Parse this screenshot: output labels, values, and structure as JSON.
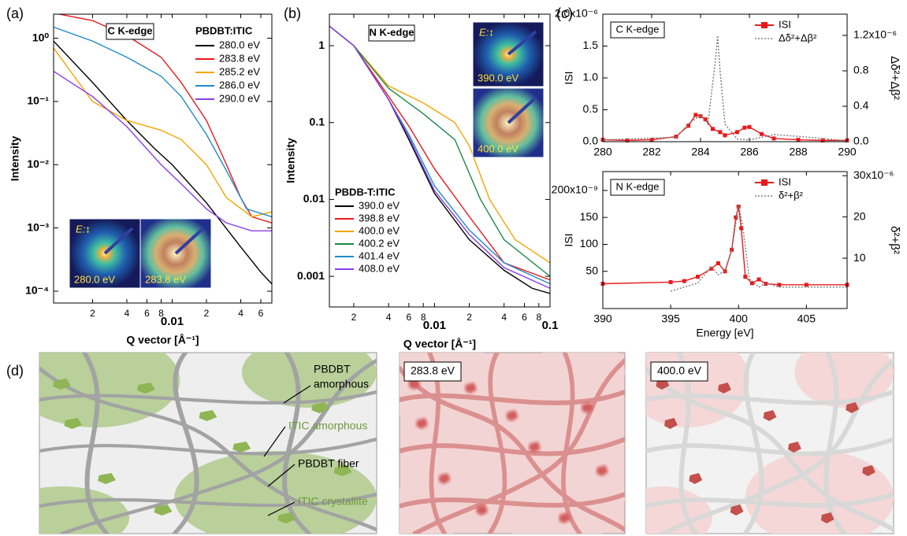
{
  "panel_labels": [
    "(a)",
    "(b)",
    "(c)",
    "(d)"
  ],
  "chart_data": [
    {
      "type": "line",
      "annotation": "C K-edge",
      "legend_title": "PBDBT:ITIC",
      "xlabel": "Q vector [Å⁻¹]",
      "ylabel": "Intensity",
      "xlog": true,
      "ylog": true,
      "xlim": [
        0.00091,
        0.075
      ],
      "ylim": [
        6.5e-05,
        2.4
      ],
      "xticks": [
        {
          "value": 0.002,
          "label": "2"
        },
        {
          "value": 0.004,
          "label": "4"
        },
        {
          "value": 0.006,
          "label": "6"
        },
        {
          "value": 0.008,
          "label": "8"
        },
        0.01,
        {
          "value": 0.02,
          "label": "2"
        },
        {
          "value": 0.04,
          "label": "4"
        },
        {
          "value": 0.06,
          "label": "6"
        }
      ],
      "yticks": [
        {
          "value": 0.0001,
          "label": "10⁻⁴"
        },
        {
          "value": 0.001,
          "label": "10⁻³"
        },
        {
          "value": 0.01,
          "label": "10⁻²"
        },
        {
          "value": 0.1,
          "label": "10⁻¹"
        },
        {
          "value": 1,
          "label": "10⁰"
        }
      ],
      "series": [
        {
          "name": "280.0 eV",
          "color": "#000000",
          "x": [
            0.00091,
            0.002,
            0.004,
            0.007,
            0.01,
            0.02,
            0.04,
            0.06,
            0.075
          ],
          "values": [
            0.9,
            0.2,
            0.05,
            0.018,
            0.01,
            0.0025,
            0.0005,
            0.0002,
            0.00013
          ]
        },
        {
          "name": "283.8 eV",
          "color": "#e8191c",
          "x": [
            0.00091,
            0.002,
            0.004,
            0.008,
            0.012,
            0.02,
            0.03,
            0.04,
            0.05,
            0.075
          ],
          "values": [
            2.5,
            1.9,
            1.1,
            0.5,
            0.2,
            0.05,
            0.01,
            0.003,
            0.0015,
            0.0012
          ]
        },
        {
          "name": "285.2 eV",
          "color": "#f5a400",
          "x": [
            0.00091,
            0.002,
            0.004,
            0.008,
            0.012,
            0.02,
            0.03,
            0.05,
            0.075
          ],
          "values": [
            0.7,
            0.1,
            0.05,
            0.035,
            0.025,
            0.01,
            0.003,
            0.0015,
            0.0018
          ]
        },
        {
          "name": "286.0 eV",
          "color": "#1f8ac9",
          "x": [
            0.00091,
            0.002,
            0.004,
            0.008,
            0.012,
            0.02,
            0.03,
            0.045,
            0.075
          ],
          "values": [
            1.5,
            0.9,
            0.5,
            0.25,
            0.12,
            0.03,
            0.008,
            0.002,
            0.0015
          ]
        },
        {
          "name": "290.0 eV",
          "color": "#8a3ee8",
          "x": [
            0.00091,
            0.002,
            0.004,
            0.008,
            0.012,
            0.02,
            0.03,
            0.05,
            0.075
          ],
          "values": [
            0.3,
            0.12,
            0.04,
            0.01,
            0.005,
            0.002,
            0.0012,
            0.0009,
            0.0009
          ]
        }
      ],
      "insets": [
        {
          "polarization": "E:↕",
          "label": "280.0 eV"
        },
        {
          "label": "283.8 eV"
        }
      ]
    },
    {
      "type": "line",
      "annotation": "N K-edge",
      "legend_title": "PBDB-T:ITIC",
      "xlabel": "Q vector [Å⁻¹]",
      "ylabel": "Intensity",
      "xlog": true,
      "ylog": true,
      "xlim": [
        0.00123,
        0.1
      ],
      "ylim": [
        0.0004,
        2.57
      ],
      "xticks": [
        {
          "value": 0.002,
          "label": "2"
        },
        {
          "value": 0.004,
          "label": "4"
        },
        {
          "value": 0.006,
          "label": "6"
        },
        {
          "value": 0.008,
          "label": "8"
        },
        0.01,
        {
          "value": 0.02,
          "label": "2"
        },
        {
          "value": 0.04,
          "label": "4"
        },
        {
          "value": 0.06,
          "label": "6"
        },
        {
          "value": 0.08,
          "label": "8"
        },
        0.1
      ],
      "yticks": [
        0.001,
        0.01,
        0.1,
        1
      ],
      "series": [
        {
          "name": "390.0 eV",
          "color": "#000000",
          "x": [
            0.00123,
            0.002,
            0.004,
            0.006,
            0.01,
            0.02,
            0.04,
            0.07,
            0.1
          ],
          "values": [
            1.8,
            1.0,
            0.2,
            0.06,
            0.012,
            0.003,
            0.0012,
            0.0007,
            0.0006
          ]
        },
        {
          "name": "398.8 eV",
          "color": "#e8191c",
          "x": [
            0.00123,
            0.002,
            0.004,
            0.006,
            0.01,
            0.02,
            0.04,
            0.1
          ],
          "values": [
            1.8,
            1.0,
            0.22,
            0.09,
            0.025,
            0.006,
            0.0015,
            0.0009
          ]
        },
        {
          "name": "400.0 eV",
          "color": "#f5a400",
          "x": [
            0.00123,
            0.002,
            0.004,
            0.008,
            0.015,
            0.02,
            0.03,
            0.05,
            0.1
          ],
          "values": [
            1.8,
            1.0,
            0.3,
            0.18,
            0.1,
            0.05,
            0.01,
            0.003,
            0.0015
          ]
        },
        {
          "name": "400.2 eV",
          "color": "#1a8a4a",
          "x": [
            0.00123,
            0.002,
            0.004,
            0.008,
            0.015,
            0.025,
            0.04,
            0.1
          ],
          "values": [
            1.8,
            1.0,
            0.28,
            0.13,
            0.06,
            0.01,
            0.003,
            0.001
          ]
        },
        {
          "name": "401.4 eV",
          "color": "#1f8ac9",
          "x": [
            0.00123,
            0.002,
            0.004,
            0.006,
            0.01,
            0.02,
            0.04,
            0.1
          ],
          "values": [
            1.8,
            1.0,
            0.2,
            0.07,
            0.015,
            0.004,
            0.0015,
            0.0008
          ]
        },
        {
          "name": "408.0 eV",
          "color": "#8a3ee8",
          "x": [
            0.00123,
            0.002,
            0.004,
            0.006,
            0.01,
            0.02,
            0.04,
            0.1
          ],
          "values": [
            1.8,
            1.0,
            0.2,
            0.065,
            0.013,
            0.0035,
            0.0013,
            0.0007
          ]
        }
      ],
      "insets": [
        {
          "polarization": "E:↕",
          "label": "390.0 eV"
        },
        {
          "label": "400.0 eV"
        }
      ]
    },
    {
      "type": "line",
      "annotation": "C K-edge",
      "ylabel": "ISI",
      "y2label": "Δδ²+Δβ²",
      "xlim": [
        280,
        290
      ],
      "ylim": [
        0,
        2e-06
      ],
      "y2lim": [
        0,
        1.44e-06
      ],
      "xticks": [
        280,
        282,
        284,
        286,
        288,
        290
      ],
      "yticks": [
        {
          "value": 0,
          "label": "0.0"
        },
        {
          "value": 5e-07,
          "label": "0.5"
        },
        {
          "value": 1e-06,
          "label": "1.0"
        },
        {
          "value": 1.5e-06,
          "label": "1.5"
        },
        {
          "value": 2e-06,
          "label": "2.0x10⁻⁶"
        }
      ],
      "y2ticks": [
        {
          "value": 0,
          "label": "0.0"
        },
        {
          "value": 4e-07,
          "label": "0.4"
        },
        {
          "value": 8e-07,
          "label": "0.8"
        },
        {
          "value": 1.2e-06,
          "label": "1.2x10⁻⁶"
        }
      ],
      "series": [
        {
          "name": "ISI",
          "color": "#e8191c",
          "marker": "square",
          "x": [
            280,
            281,
            282,
            283,
            283.5,
            283.8,
            284,
            284.2,
            284.5,
            284.8,
            285,
            285.5,
            285.8,
            286,
            286.5,
            287,
            288,
            289,
            290
          ],
          "values": [
            3e-08,
            2e-08,
            3e-08,
            8e-08,
            2.5e-07,
            4.2e-07,
            4e-07,
            3.5e-07,
            2e-07,
            1.5e-07,
            1e-07,
            1.5e-07,
            2.2e-07,
            2.3e-07,
            1.2e-07,
            5e-08,
            3e-08,
            2e-08,
            2e-08
          ]
        },
        {
          "name": "Δδ²+Δβ²",
          "color": "#808080",
          "dash": true,
          "axis": "y2",
          "x": [
            280,
            283,
            283.5,
            284,
            284.3,
            284.6,
            284.7,
            284.8,
            285,
            285.5,
            286,
            287,
            288,
            290
          ],
          "values": [
            2e-08,
            5e-08,
            2e-07,
            3e-07,
            2e-07,
            9e-07,
            1.2e-06,
            8e-07,
            2e-07,
            3e-08,
            2e-08,
            8e-08,
            6e-08,
            1e-08
          ]
        }
      ]
    },
    {
      "type": "line",
      "annotation": "N K-edge",
      "xlabel": "Energy [eV]",
      "ylabel": "ISI",
      "y2label": "δ²+β²",
      "xlim": [
        390,
        408
      ],
      "ylim": [
        -1.9e-08,
        2.35e-07
      ],
      "y2lim": [
        -2.2e-06,
        3.1e-05
      ],
      "xticks": [
        390,
        395,
        400,
        405
      ],
      "yticks": [
        {
          "value": 5e-08,
          "label": "50"
        },
        {
          "value": 1e-07,
          "label": "100"
        },
        {
          "value": 1.5e-07,
          "label": "150"
        },
        {
          "value": 2e-07,
          "label": "200x10⁻⁹"
        }
      ],
      "y2ticks": [
        {
          "value": 1e-05,
          "label": "10"
        },
        {
          "value": 2e-05,
          "label": "20"
        },
        {
          "value": 3e-05,
          "label": "30x10⁻⁶"
        }
      ],
      "series": [
        {
          "name": "ISI",
          "color": "#e8191c",
          "marker": "square",
          "x": [
            390,
            395,
            396,
            397,
            398,
            398.5,
            399,
            399.5,
            399.8,
            400,
            400.2,
            400.5,
            401,
            401.5,
            402,
            403,
            405,
            408
          ],
          "values": [
            2.7e-08,
            3e-08,
            3.2e-08,
            4e-08,
            5.5e-08,
            6.5e-08,
            5e-08,
            9e-08,
            1.5e-07,
            1.7e-07,
            1.3e-07,
            4e-08,
            2.8e-08,
            3.5e-08,
            2.7e-08,
            2.5e-08,
            2.5e-08,
            2.5e-08
          ]
        },
        {
          "name": "δ²+β²",
          "color": "#808080",
          "dash": true,
          "axis": "y2",
          "x": [
            395,
            397,
            398,
            398.5,
            399,
            399.5,
            400,
            400.3,
            400.8,
            401.5,
            402,
            403,
            405,
            408
          ],
          "values": [
            2e-06,
            4e-06,
            8e-06,
            6e-06,
            7e-06,
            1.2e-05,
            2.3e-05,
            1.8e-05,
            5e-06,
            3e-06,
            4e-06,
            3e-06,
            3e-06,
            3e-06
          ]
        }
      ]
    }
  ],
  "diagram": {
    "callouts": [
      {
        "lines": [
          "PBDBT",
          "amorphous"
        ]
      },
      {
        "lines": [
          "ITIC amorphous"
        ]
      },
      {
        "lines": [
          "PBDBT fiber"
        ]
      },
      {
        "lines": [
          "ITIC crystallite"
        ]
      }
    ],
    "energy_labels": [
      "283.8 eV",
      "400.0 eV"
    ]
  }
}
